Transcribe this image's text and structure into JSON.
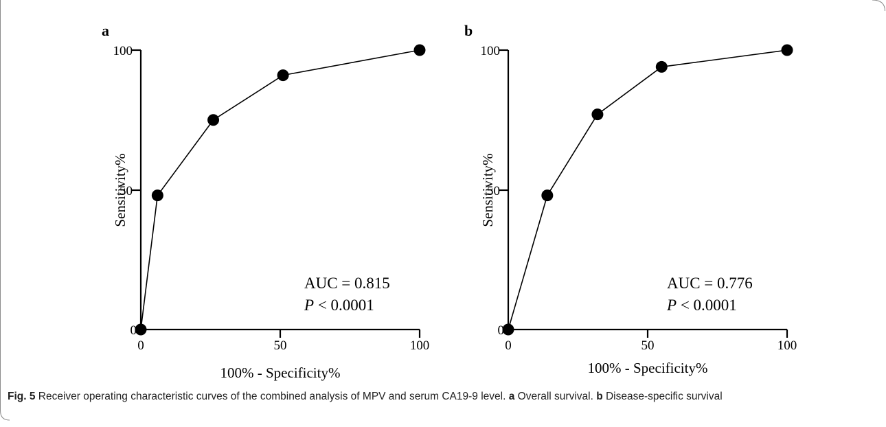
{
  "chart_data": [
    {
      "type": "line",
      "panel_label": "a",
      "xlabel": "100% - Specificity%",
      "ylabel": "Sensitivity%",
      "xlim": [
        0,
        100
      ],
      "ylim": [
        0,
        100
      ],
      "xticks": [
        "0",
        "50",
        "100"
      ],
      "yticks": [
        "0",
        "50",
        "100"
      ],
      "grid": false,
      "series": [
        {
          "x": [
            0,
            6,
            26,
            51,
            100
          ],
          "y": [
            0,
            48,
            75,
            91,
            100
          ],
          "marker": "circle",
          "color": "#000000"
        }
      ],
      "annotations": {
        "auc": "AUC = 0.815",
        "p_italic": "P",
        "p_rest": " < 0.0001"
      }
    },
    {
      "type": "line",
      "panel_label": "b",
      "xlabel": "100% - Specificity%",
      "ylabel": "Sensitivity%",
      "xlim": [
        0,
        100
      ],
      "ylim": [
        0,
        100
      ],
      "xticks": [
        "0",
        "50",
        "100"
      ],
      "yticks": [
        "0",
        "50",
        "100"
      ],
      "grid": false,
      "series": [
        {
          "x": [
            0,
            14,
            32,
            55,
            100
          ],
          "y": [
            0,
            48,
            77,
            94,
            100
          ],
          "marker": "circle",
          "color": "#000000"
        }
      ],
      "annotations": {
        "auc": "AUC = 0.776",
        "p_italic": "P",
        "p_rest": " < 0.0001"
      }
    }
  ],
  "caption": {
    "fig_label": "Fig. 5",
    "text_1": " Receiver operating characteristic curves of the combined analysis of MPV and serum CA19-9 level. ",
    "label_a": "a",
    "text_a": " Overall survival. ",
    "label_b": "b",
    "text_b": " Disease-specific survival"
  }
}
